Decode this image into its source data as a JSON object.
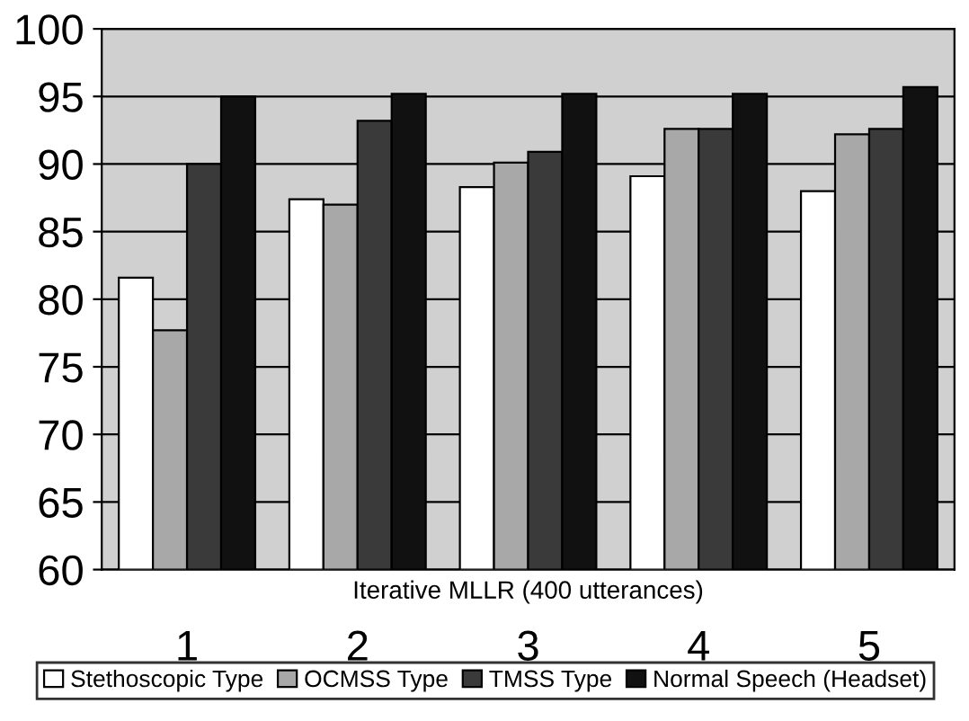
{
  "chart_data": {
    "type": "bar",
    "xlabel": "Iterative MLLR (400 utterances)",
    "categories": [
      "1",
      "2",
      "3",
      "4",
      "5"
    ],
    "series": [
      {
        "name": "Stethoscopic Type",
        "color": "#ffffff",
        "values": [
          81.6,
          87.4,
          88.3,
          89.1,
          88.0
        ]
      },
      {
        "name": "OCMSS Type",
        "color": "#a8a8a8",
        "values": [
          77.7,
          87.0,
          90.1,
          92.6,
          92.2
        ]
      },
      {
        "name": "TMSS Type",
        "color": "#3a3a3a",
        "values": [
          90.0,
          93.2,
          90.9,
          92.6,
          92.6
        ]
      },
      {
        "name": "Normal Speech (Headset)",
        "color": "#111111",
        "values": [
          95.0,
          95.2,
          95.2,
          95.2,
          95.7
        ]
      }
    ],
    "ylim": [
      60,
      100
    ],
    "yticks": [
      60,
      65,
      70,
      75,
      80,
      85,
      90,
      95,
      100
    ],
    "grid": "y",
    "legend": "bottom"
  }
}
